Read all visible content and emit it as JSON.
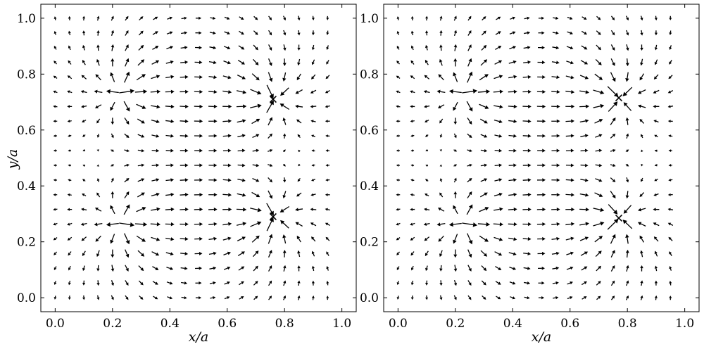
{
  "chart_data": [
    {
      "type": "quiver",
      "panel": "left",
      "xlabel": "x/a",
      "ylabel": "y/a",
      "xlim": [
        -0.05,
        1.05
      ],
      "ylim": [
        -0.05,
        1.05
      ],
      "xticks": [
        "0.0",
        "0.2",
        "0.4",
        "0.6",
        "0.8",
        "1.0"
      ],
      "yticks": [
        "0.0",
        "0.2",
        "0.4",
        "0.6",
        "0.8",
        "1.0"
      ],
      "grid": false,
      "field": {
        "x_range": [
          0.0,
          0.95
        ],
        "y_range": [
          0.0,
          1.0
        ],
        "grid_n": 20,
        "sources": [
          {
            "x": 0.235,
            "y": 0.735,
            "strength": 1.0
          },
          {
            "x": 0.235,
            "y": 0.265,
            "strength": 1.0
          }
        ],
        "sinks": [
          {
            "x": 0.76,
            "y": 0.71,
            "strength": 1.0
          },
          {
            "x": 0.76,
            "y": 0.29,
            "strength": 1.0
          }
        ]
      },
      "markers": [
        {
          "x": 0.76,
          "y": 0.71
        },
        {
          "x": 0.76,
          "y": 0.29
        }
      ]
    },
    {
      "type": "quiver",
      "panel": "right",
      "xlabel": "x/a",
      "ylabel": "",
      "xlim": [
        -0.05,
        1.05
      ],
      "ylim": [
        -0.05,
        1.05
      ],
      "xticks": [
        "0.0",
        "0.2",
        "0.4",
        "0.6",
        "0.8",
        "1.0"
      ],
      "yticks": [
        "0.0",
        "0.2",
        "0.4",
        "0.6",
        "0.8",
        "1.0"
      ],
      "grid": false,
      "field": {
        "x_range": [
          0.0,
          0.95
        ],
        "y_range": [
          0.0,
          1.0
        ],
        "grid_n": 20,
        "sources": [
          {
            "x": 0.235,
            "y": 0.735,
            "strength": 1.0
          },
          {
            "x": 0.235,
            "y": 0.265,
            "strength": 1.0
          }
        ],
        "sinks": [
          {
            "x": 0.77,
            "y": 0.715,
            "strength": 1.0
          },
          {
            "x": 0.77,
            "y": 0.285,
            "strength": 1.0
          }
        ]
      },
      "markers": [
        {
          "x": 0.77,
          "y": 0.715
        },
        {
          "x": 0.77,
          "y": 0.285
        }
      ]
    }
  ]
}
